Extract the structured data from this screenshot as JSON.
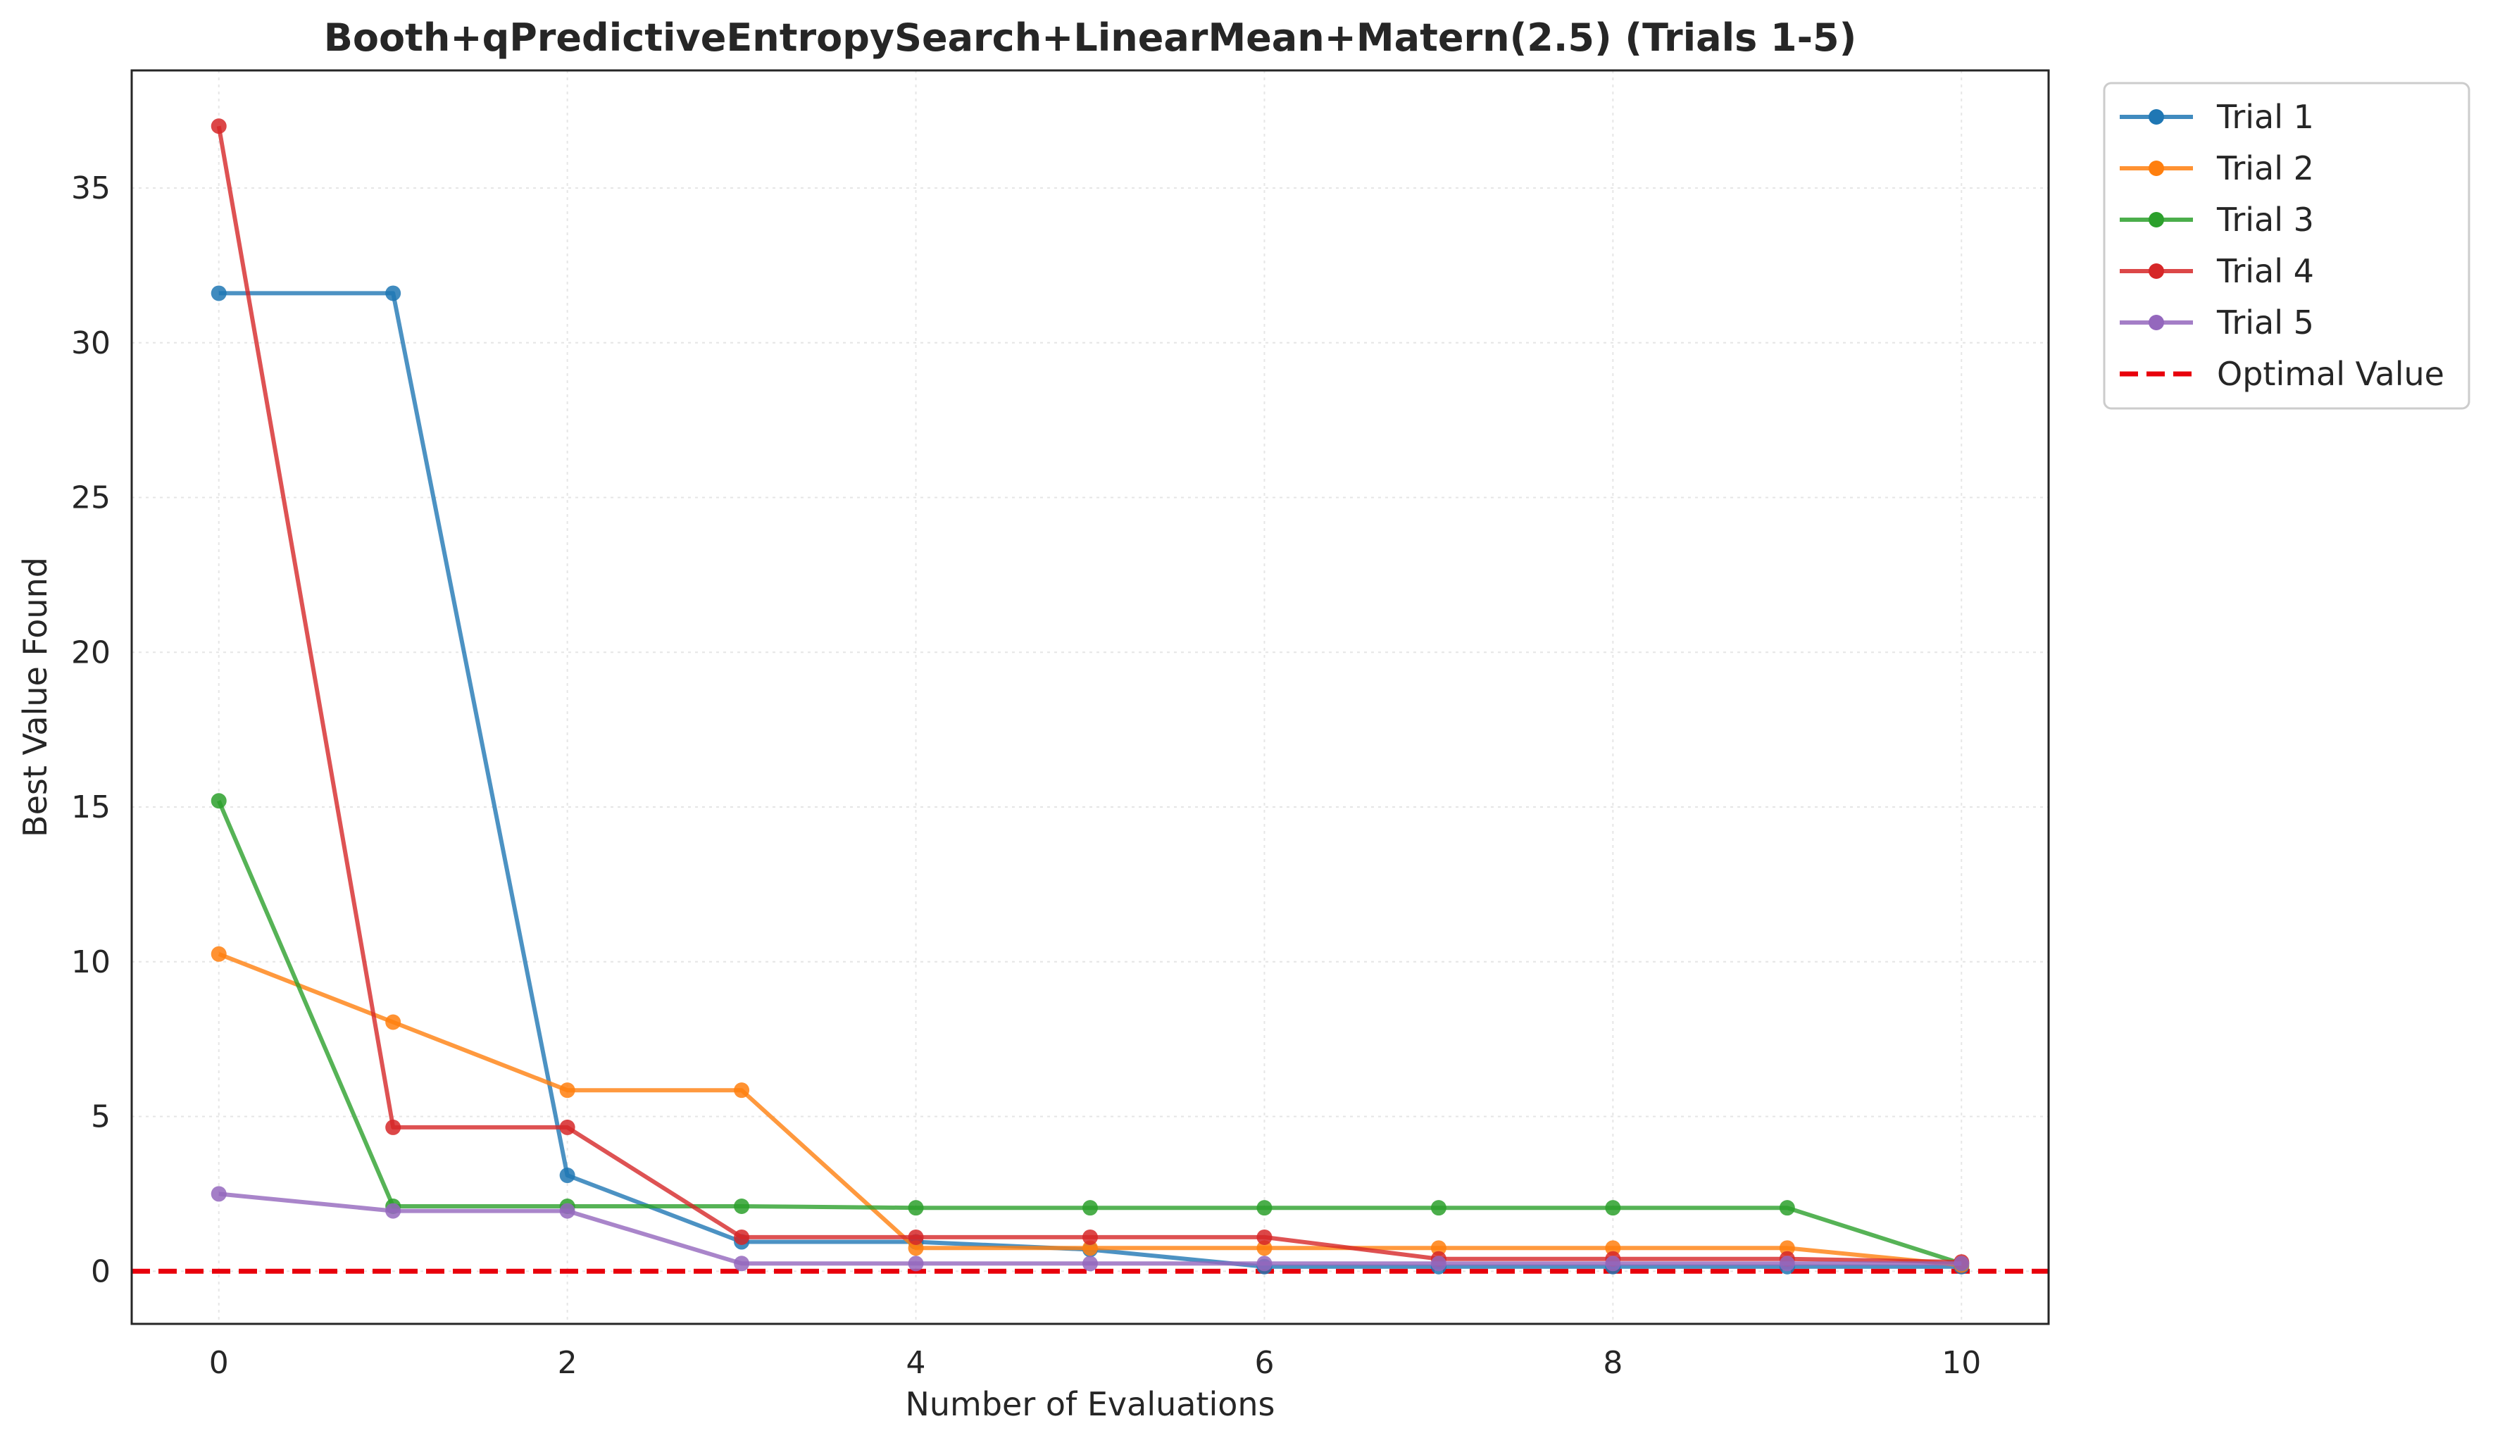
{
  "chart_data": {
    "type": "line",
    "title": "Booth+qPredictiveEntropySearch+LinearMean+Matern(2.5) (Trials 1-5)",
    "xlabel": "Number of Evaluations",
    "ylabel": "Best Value Found",
    "xlim": [
      -0.5,
      10.5
    ],
    "ylim": [
      -1.7,
      38.8
    ],
    "xticks": [
      0,
      2,
      4,
      6,
      8,
      10
    ],
    "yticks": [
      0,
      5,
      10,
      15,
      20,
      25,
      30,
      35
    ],
    "grid": true,
    "legend_position": "outside top-right",
    "x": [
      0,
      1,
      2,
      3,
      4,
      5,
      6,
      7,
      8,
      9,
      10
    ],
    "series": [
      {
        "name": "Trial 1",
        "color": "#1f77b4",
        "values": [
          31.6,
          31.6,
          3.1,
          0.95,
          0.95,
          0.7,
          0.15,
          0.15,
          0.15,
          0.15,
          0.15
        ]
      },
      {
        "name": "Trial 2",
        "color": "#ff7f0e",
        "values": [
          10.25,
          8.05,
          5.85,
          5.85,
          0.75,
          0.75,
          0.75,
          0.75,
          0.75,
          0.75,
          0.2
        ]
      },
      {
        "name": "Trial 3",
        "color": "#2ca02c",
        "values": [
          15.2,
          2.1,
          2.1,
          2.1,
          2.05,
          2.05,
          2.05,
          2.05,
          2.05,
          2.05,
          0.25
        ]
      },
      {
        "name": "Trial 4",
        "color": "#d62728",
        "values": [
          37.0,
          4.65,
          4.65,
          1.1,
          1.1,
          1.1,
          1.1,
          0.4,
          0.4,
          0.4,
          0.3
        ]
      },
      {
        "name": "Trial 5",
        "color": "#9467bd",
        "values": [
          2.5,
          1.95,
          1.95,
          0.25,
          0.25,
          0.25,
          0.25,
          0.25,
          0.25,
          0.25,
          0.25
        ]
      }
    ],
    "reference_line": {
      "name": "Optimal Value",
      "value": 0,
      "color": "#e8000b",
      "style": "dashed"
    }
  }
}
